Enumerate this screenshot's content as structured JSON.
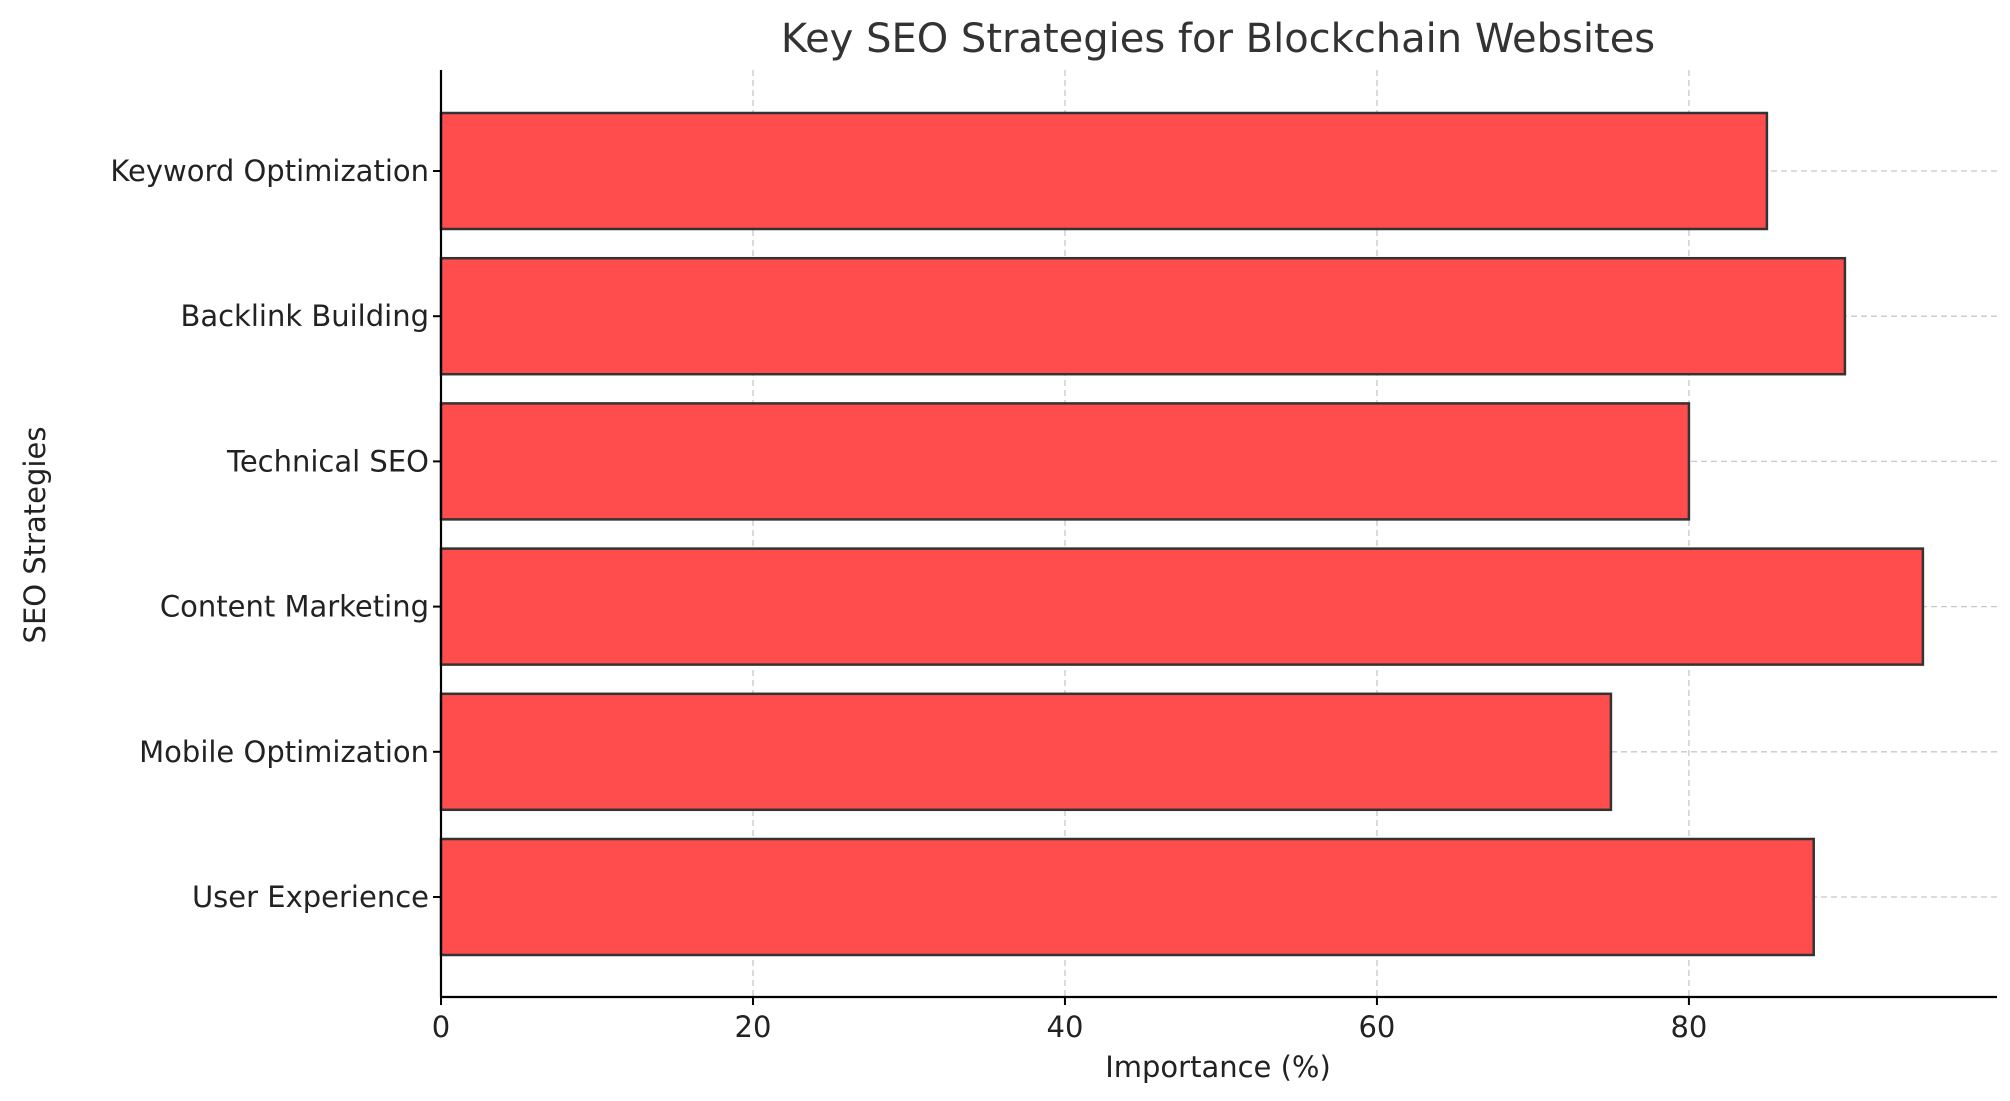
{
  "chart_data": {
    "type": "bar",
    "orientation": "horizontal",
    "title": "Key SEO Strategies for Blockchain Websites",
    "xlabel": "Importance (%)",
    "ylabel": "SEO Strategies",
    "categories": [
      "Keyword Optimization",
      "Backlink Building",
      "Technical SEO",
      "Content Marketing",
      "Mobile Optimization",
      "User Experience"
    ],
    "values": [
      85,
      90,
      80,
      95,
      75,
      88
    ],
    "xlim": [
      0,
      99.75
    ],
    "xticks": [
      0,
      20,
      40,
      60,
      80
    ],
    "grid": true,
    "bar_color": "#ff4d4d",
    "bar_edge_color": "#333333"
  }
}
